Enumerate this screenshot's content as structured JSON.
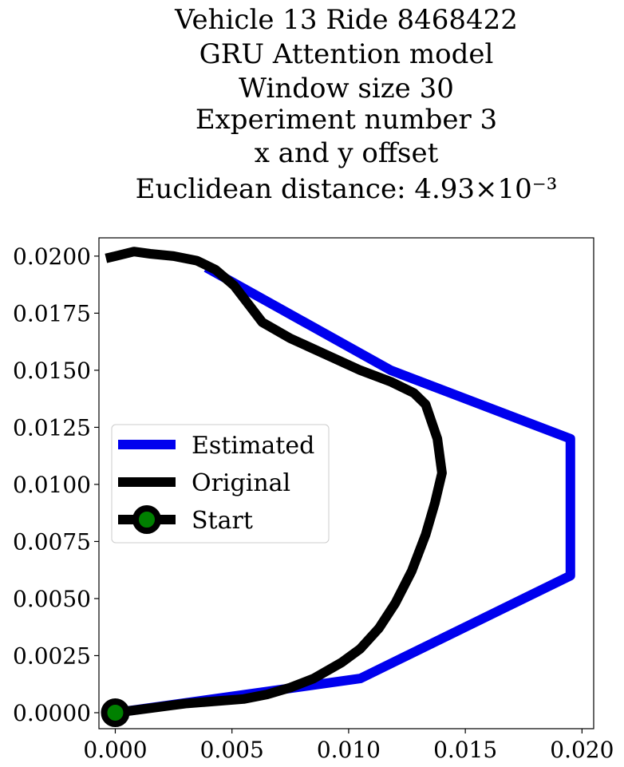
{
  "chart_data": {
    "type": "line",
    "title_lines": [
      "Vehicle 13 Ride 8468422",
      "GRU Attention model",
      "Window size 30",
      "Experiment number 3",
      "x and y offset",
      "Euclidean distance: 4.93×10⁻³"
    ],
    "xlabel": "",
    "ylabel": "",
    "xlim": [
      -0.0007,
      0.0205
    ],
    "ylim": [
      -0.0007,
      0.0208
    ],
    "x_ticks": [
      0.0,
      0.005,
      0.01,
      0.015,
      0.02
    ],
    "x_tick_labels": [
      "0.000",
      "0.005",
      "0.010",
      "0.015",
      "0.020"
    ],
    "y_ticks": [
      0.0,
      0.0025,
      0.005,
      0.0075,
      0.01,
      0.0125,
      0.015,
      0.0175,
      0.02
    ],
    "y_tick_labels": [
      "0.0000",
      "0.0025",
      "0.0050",
      "0.0075",
      "0.0100",
      "0.0125",
      "0.0150",
      "0.0175",
      "0.0200"
    ],
    "grid": false,
    "legend_position": "center-left",
    "legend": [
      {
        "label": "Estimated",
        "color": "#0000ee",
        "marker": "none"
      },
      {
        "label": "Original",
        "color": "#000000",
        "marker": "none"
      },
      {
        "label": "Start",
        "color": "#000000",
        "marker": "circle",
        "marker_face": "#008000"
      }
    ],
    "series": [
      {
        "name": "Estimated",
        "color": "#0000ee",
        "points": [
          [
            0.0,
            0.0
          ],
          [
            0.0105,
            0.0015
          ],
          [
            0.0195,
            0.006
          ],
          [
            0.0195,
            0.012
          ],
          [
            0.0118,
            0.015
          ],
          [
            0.0039,
            0.0195
          ]
        ]
      },
      {
        "name": "Original",
        "color": "#000000",
        "points": [
          [
            0.0,
            0.0
          ],
          [
            0.0015,
            0.0002
          ],
          [
            0.003,
            0.0004
          ],
          [
            0.0055,
            0.0006
          ],
          [
            0.0065,
            0.0008
          ],
          [
            0.0075,
            0.0011
          ],
          [
            0.0085,
            0.0015
          ],
          [
            0.0097,
            0.0022
          ],
          [
            0.0105,
            0.0028
          ],
          [
            0.0113,
            0.0037
          ],
          [
            0.012,
            0.0048
          ],
          [
            0.0127,
            0.0062
          ],
          [
            0.0133,
            0.0078
          ],
          [
            0.0137,
            0.0092
          ],
          [
            0.014,
            0.0105
          ],
          [
            0.0138,
            0.012
          ],
          [
            0.0133,
            0.0135
          ],
          [
            0.0128,
            0.014
          ],
          [
            0.0118,
            0.0145
          ],
          [
            0.0105,
            0.015
          ],
          [
            0.009,
            0.0157
          ],
          [
            0.0075,
            0.0164
          ],
          [
            0.0063,
            0.0171
          ],
          [
            0.0057,
            0.0179
          ],
          [
            0.0051,
            0.0187
          ],
          [
            0.0043,
            0.0194
          ],
          [
            0.0035,
            0.0198
          ],
          [
            0.0025,
            0.02
          ],
          [
            0.0015,
            0.0201
          ],
          [
            0.0008,
            0.0202
          ],
          [
            0.0,
            0.02
          ],
          [
            -0.0004,
            0.0199
          ]
        ]
      }
    ],
    "start_point": {
      "name": "Start",
      "x": 0.0,
      "y": 0.0,
      "edge_color": "#000000",
      "face_color": "#008000"
    }
  }
}
